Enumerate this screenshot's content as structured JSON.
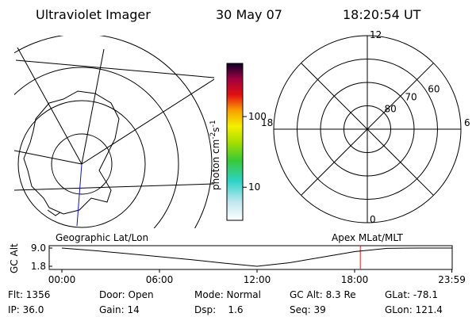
{
  "header": {
    "instrument": "Ultraviolet Imager",
    "date": "30 May 07",
    "time": "18:20:54 UT"
  },
  "colorbar": {
    "label": [
      "photon cm",
      "-2",
      "s",
      "-1"
    ],
    "range": [
      3.4,
      566
    ],
    "ticks": [
      100,
      10
    ]
  },
  "left_map": {
    "label": "Geographic Lat/Lon"
  },
  "polar_map": {
    "label": "Apex MLat/MLT",
    "mlt_labels": [
      12,
      18,
      6,
      0
    ],
    "lat_circles": [
      60,
      70,
      80
    ],
    "lat_range": [
      90,
      50
    ]
  },
  "altitude_plot": {
    "axis_label": "GC Alt",
    "x": [
      0,
      2,
      4,
      6,
      8,
      10,
      12,
      14,
      16,
      18,
      20,
      22,
      23.98
    ],
    "values": [
      9.0,
      8.0,
      6.8,
      5.6,
      4.4,
      3.0,
      1.8,
      3.2,
      5.4,
      7.6,
      8.9,
      9.0,
      9.0
    ],
    "xlim": [
      0,
      24
    ],
    "ylim": [
      1.8,
      9.0
    ],
    "xticks": [
      {
        "value": 0,
        "label": "00:00"
      },
      {
        "value": 6,
        "label": "06:00"
      },
      {
        "value": 12,
        "label": "12:00"
      },
      {
        "value": 18,
        "label": "18:00"
      },
      {
        "value": 23.98,
        "label": "23:59"
      }
    ],
    "yticks": [
      {
        "value": 9,
        "label": "9.0"
      },
      1.8
    ],
    "marker_time": 18.35
  },
  "footer": {
    "rows": [
      [
        "Flt: 1356",
        "Door: Open",
        "Mode: Normal",
        "GC Alt: 8.3 Re",
        "GLat: -78.1"
      ],
      [
        "IP: 36.0",
        "Gain: 14",
        "Dsp:    1.6",
        "Seq: 39",
        "GLon: 121.4"
      ]
    ]
  }
}
